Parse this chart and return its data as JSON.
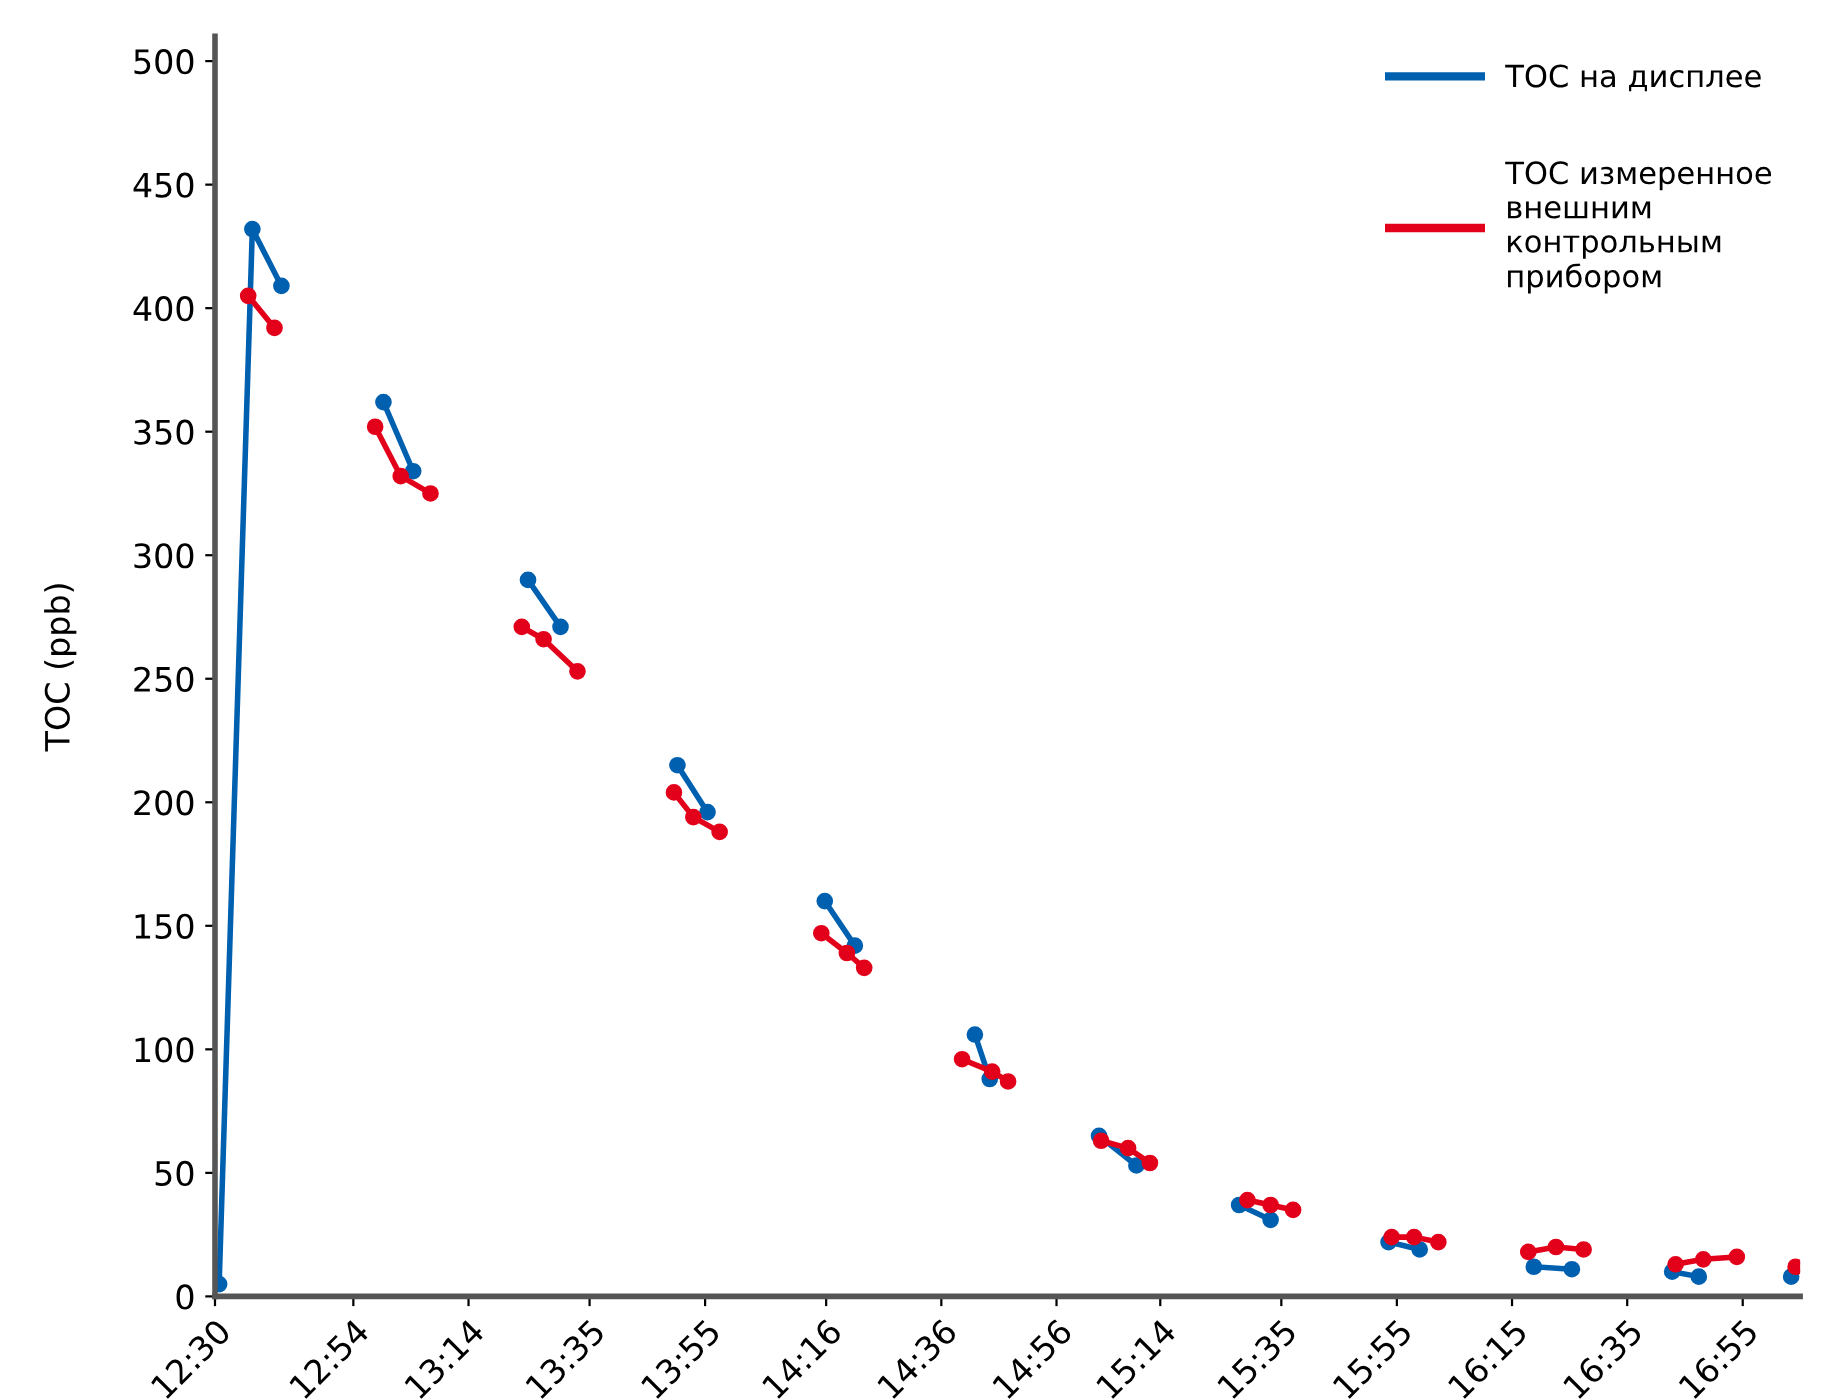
{
  "chart_data": {
    "type": "line",
    "ylabel": "TOC (ppb)",
    "xlim": [
      12.5,
      17.083
    ],
    "ylim": [
      0,
      510
    ],
    "xticks": [
      {
        "value": 12.5,
        "label": "12:30"
      },
      {
        "value": 12.9,
        "label": "12:54"
      },
      {
        "value": 13.233,
        "label": "13:14"
      },
      {
        "value": 13.583,
        "label": "13:35"
      },
      {
        "value": 13.917,
        "label": "13:55"
      },
      {
        "value": 14.267,
        "label": "14:16"
      },
      {
        "value": 14.6,
        "label": "14:36"
      },
      {
        "value": 14.933,
        "label": "14:56"
      },
      {
        "value": 15.233,
        "label": "15:14"
      },
      {
        "value": 15.583,
        "label": "15:35"
      },
      {
        "value": 15.917,
        "label": "15:55"
      },
      {
        "value": 16.25,
        "label": "16:15"
      },
      {
        "value": 16.583,
        "label": "16:35"
      },
      {
        "value": 16.917,
        "label": "16:55"
      }
    ],
    "yticks": [
      0,
      50,
      100,
      150,
      200,
      250,
      300,
      350,
      400,
      450,
      500
    ],
    "grid": false,
    "legend": "top right",
    "marker": "circle",
    "line_style": "solid",
    "series": [
      {
        "name": "TOC на дисплее",
        "color": "#0060b0",
        "x": [
          12.512,
          12.608,
          12.692,
          null,
          12.987,
          13.073,
          null,
          13.405,
          13.499,
          null,
          13.837,
          13.924,
          null,
          14.263,
          14.35,
          null,
          14.697,
          14.74,
          null,
          15.056,
          15.164,
          null,
          15.461,
          15.552,
          null,
          15.893,
          15.983,
          null,
          16.313,
          16.423,
          null,
          16.713,
          16.79,
          null,
          17.057
        ],
        "values": [
          5,
          432,
          409,
          null,
          362,
          334,
          null,
          290,
          271,
          null,
          215,
          196,
          null,
          160,
          142,
          null,
          106,
          88,
          null,
          65,
          53,
          null,
          37,
          31,
          null,
          22,
          19,
          null,
          12,
          11,
          null,
          10,
          8,
          null,
          8
        ]
      },
      {
        "name": "TOC измеренное внешним контрольным прибором",
        "color": "#e2001a",
        "x": [
          12.596,
          12.672,
          null,
          12.963,
          13.037,
          13.123,
          null,
          13.387,
          13.45,
          13.548,
          null,
          13.827,
          13.883,
          13.959,
          null,
          14.253,
          14.327,
          14.377,
          null,
          14.66,
          14.747,
          14.793,
          null,
          15.062,
          15.14,
          15.203,
          null,
          15.485,
          15.552,
          15.617,
          null,
          15.902,
          15.967,
          16.037,
          null,
          16.297,
          16.377,
          16.457,
          null,
          16.723,
          16.803,
          16.9,
          null,
          17.07
        ],
        "values": [
          405,
          392,
          null,
          352,
          332,
          325,
          null,
          271,
          266,
          253,
          null,
          204,
          194,
          188,
          null,
          147,
          139,
          133,
          null,
          96,
          91,
          87,
          null,
          63,
          60,
          54,
          null,
          39,
          37,
          35,
          null,
          24,
          24,
          22,
          null,
          18,
          20,
          19,
          null,
          13,
          15,
          16,
          null,
          12
        ]
      }
    ]
  }
}
